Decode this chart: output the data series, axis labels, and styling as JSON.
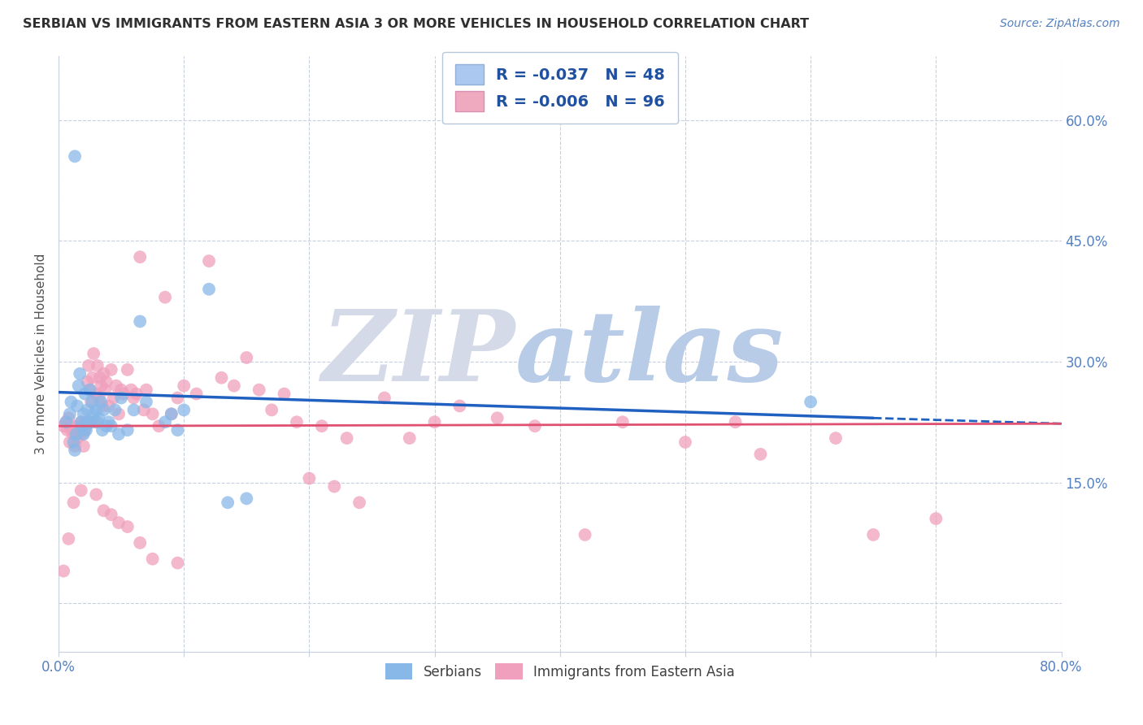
{
  "title": "SERBIAN VS IMMIGRANTS FROM EASTERN ASIA 3 OR MORE VEHICLES IN HOUSEHOLD CORRELATION CHART",
  "source": "Source: ZipAtlas.com",
  "ylabel": "3 or more Vehicles in Household",
  "xlim": [
    0.0,
    0.8
  ],
  "ylim": [
    -0.06,
    0.68
  ],
  "yticks_right": [
    0.0,
    0.15,
    0.3,
    0.45,
    0.6
  ],
  "yticklabels_right": [
    "",
    "15.0%",
    "30.0%",
    "45.0%",
    "60.0%"
  ],
  "legend_label1": "R = -0.037   N = 48",
  "legend_label2": "R = -0.006   N = 96",
  "legend_color1": "#aac8f0",
  "legend_color2": "#f0aac0",
  "series1_color": "#88b8e8",
  "series2_color": "#f0a0bc",
  "trendline1_color": "#2060c0",
  "trendline2_color": "#e05070",
  "watermark_zip": "ZIP",
  "watermark_atlas": "atlas",
  "watermark_zip_color": "#d4dae8",
  "watermark_atlas_color": "#b8cce8",
  "background_color": "#ffffff",
  "grid_color": "#c8d0e0",
  "title_color": "#303030",
  "source_color": "#5580c0",
  "tick_color": "#5580c0",
  "ylabel_color": "#505050",
  "s1_x": [
    0.006,
    0.009,
    0.01,
    0.012,
    0.013,
    0.014,
    0.015,
    0.016,
    0.017,
    0.018,
    0.019,
    0.02,
    0.02,
    0.021,
    0.022,
    0.022,
    0.023,
    0.024,
    0.025,
    0.025,
    0.026,
    0.027,
    0.028,
    0.03,
    0.031,
    0.032,
    0.034,
    0.035,
    0.036,
    0.038,
    0.04,
    0.042,
    0.045,
    0.048,
    0.05,
    0.055,
    0.06,
    0.065,
    0.07,
    0.085,
    0.09,
    0.095,
    0.1,
    0.12,
    0.135,
    0.15,
    0.6,
    0.013
  ],
  "s1_y": [
    0.225,
    0.235,
    0.25,
    0.2,
    0.19,
    0.21,
    0.245,
    0.27,
    0.285,
    0.225,
    0.22,
    0.235,
    0.21,
    0.26,
    0.22,
    0.215,
    0.24,
    0.225,
    0.265,
    0.225,
    0.225,
    0.25,
    0.235,
    0.24,
    0.225,
    0.23,
    0.25,
    0.215,
    0.24,
    0.22,
    0.225,
    0.22,
    0.24,
    0.21,
    0.255,
    0.215,
    0.24,
    0.35,
    0.25,
    0.225,
    0.235,
    0.215,
    0.24,
    0.39,
    0.125,
    0.13,
    0.25,
    0.555
  ],
  "s2_x": [
    0.004,
    0.006,
    0.007,
    0.008,
    0.009,
    0.01,
    0.011,
    0.012,
    0.013,
    0.014,
    0.015,
    0.016,
    0.017,
    0.018,
    0.019,
    0.02,
    0.02,
    0.021,
    0.022,
    0.023,
    0.024,
    0.025,
    0.026,
    0.027,
    0.028,
    0.029,
    0.03,
    0.031,
    0.032,
    0.033,
    0.034,
    0.035,
    0.036,
    0.037,
    0.038,
    0.04,
    0.042,
    0.044,
    0.046,
    0.048,
    0.05,
    0.052,
    0.055,
    0.058,
    0.06,
    0.062,
    0.065,
    0.068,
    0.07,
    0.075,
    0.08,
    0.085,
    0.09,
    0.095,
    0.1,
    0.11,
    0.12,
    0.13,
    0.14,
    0.15,
    0.16,
    0.17,
    0.18,
    0.19,
    0.2,
    0.21,
    0.22,
    0.23,
    0.24,
    0.26,
    0.28,
    0.3,
    0.32,
    0.35,
    0.38,
    0.42,
    0.45,
    0.5,
    0.54,
    0.56,
    0.62,
    0.65,
    0.7,
    0.004,
    0.008,
    0.012,
    0.018,
    0.024,
    0.03,
    0.036,
    0.042,
    0.048,
    0.055,
    0.065,
    0.075,
    0.095
  ],
  "s2_y": [
    0.22,
    0.225,
    0.215,
    0.23,
    0.2,
    0.215,
    0.22,
    0.21,
    0.195,
    0.215,
    0.205,
    0.22,
    0.215,
    0.225,
    0.21,
    0.22,
    0.195,
    0.215,
    0.225,
    0.275,
    0.295,
    0.265,
    0.25,
    0.28,
    0.31,
    0.225,
    0.26,
    0.295,
    0.255,
    0.28,
    0.27,
    0.245,
    0.285,
    0.265,
    0.275,
    0.245,
    0.29,
    0.255,
    0.27,
    0.235,
    0.265,
    0.26,
    0.29,
    0.265,
    0.255,
    0.26,
    0.43,
    0.24,
    0.265,
    0.235,
    0.22,
    0.38,
    0.235,
    0.255,
    0.27,
    0.26,
    0.425,
    0.28,
    0.27,
    0.305,
    0.265,
    0.24,
    0.26,
    0.225,
    0.155,
    0.22,
    0.145,
    0.205,
    0.125,
    0.255,
    0.205,
    0.225,
    0.245,
    0.23,
    0.22,
    0.085,
    0.225,
    0.2,
    0.225,
    0.185,
    0.205,
    0.085,
    0.105,
    0.04,
    0.08,
    0.125,
    0.14,
    0.225,
    0.135,
    0.115,
    0.11,
    0.1,
    0.095,
    0.075,
    0.055,
    0.05
  ],
  "trendline1_x0": 0.0,
  "trendline1_y0": 0.262,
  "trendline1_x1": 0.65,
  "trendline1_y1": 0.23,
  "trendline1_dash_x0": 0.65,
  "trendline1_dash_y0": 0.23,
  "trendline1_dash_x1": 0.8,
  "trendline1_dash_y1": 0.223,
  "trendline2_x0": 0.0,
  "trendline2_y0": 0.22,
  "trendline2_x1": 0.8,
  "trendline2_y1": 0.223
}
